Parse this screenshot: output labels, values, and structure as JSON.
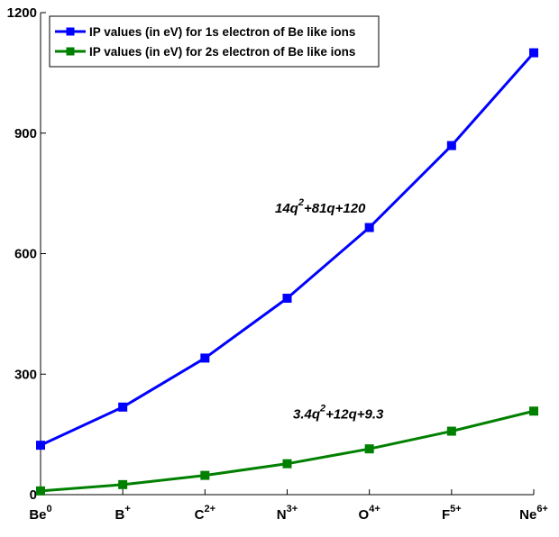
{
  "chart_data": {
    "type": "line",
    "categories": [
      {
        "base": "Be",
        "sup": "0"
      },
      {
        "base": "B",
        "sup": "+"
      },
      {
        "base": "C",
        "sup": "2+"
      },
      {
        "base": "N",
        "sup": "3+"
      },
      {
        "base": "O",
        "sup": "4+"
      },
      {
        "base": "F",
        "sup": "5+"
      },
      {
        "base": "Ne",
        "sup": "6+"
      }
    ],
    "series": [
      {
        "name": "IP values (in eV) for 1s electron of Be like ions",
        "color": "#0000ff",
        "values": [
          123,
          218,
          340,
          489,
          665,
          869,
          1100
        ]
      },
      {
        "name": "IP values (in eV) for 2s electron of Be like ions",
        "color": "#008000",
        "values": [
          9.3,
          25,
          48,
          77,
          114,
          158,
          208
        ]
      }
    ],
    "ylim": [
      0,
      1200
    ],
    "yticks": [
      "0",
      "300",
      "600",
      "900",
      "1200"
    ],
    "title": "",
    "xlabel": "",
    "ylabel": "",
    "grid": false,
    "legend_position": "top-left",
    "annotations": [
      {
        "series": 0,
        "parts": [
          {
            "t": "14q"
          },
          {
            "t": "2",
            "sup": true
          },
          {
            "t": "+81q+120"
          }
        ]
      },
      {
        "series": 1,
        "parts": [
          {
            "t": "3.4q"
          },
          {
            "t": "2",
            "sup": true
          },
          {
            "t": "+12q+9.3"
          }
        ]
      }
    ]
  }
}
